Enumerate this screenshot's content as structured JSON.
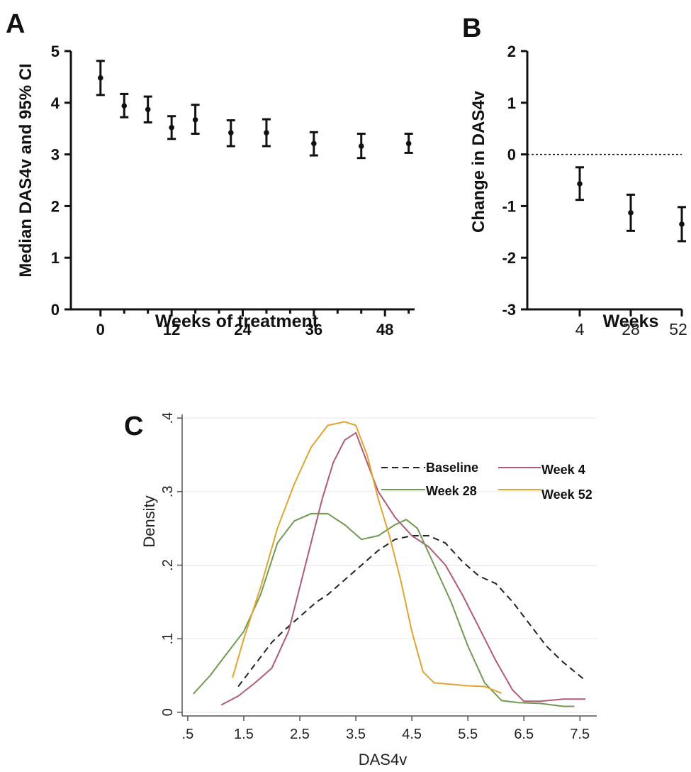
{
  "chart_data": [
    {
      "panel": "A",
      "type": "scatter",
      "xlabel": "Weeks of treatment",
      "ylabel": "Median DAS4v and 95% CI",
      "xticks": [
        0,
        12,
        24,
        36,
        48
      ],
      "yticks": [
        0,
        1,
        2,
        3,
        4,
        5
      ],
      "xlim": [
        -5,
        53
      ],
      "ylim": [
        0,
        5
      ],
      "points": [
        {
          "x": 0,
          "y": 4.48,
          "lo": 4.15,
          "hi": 4.81
        },
        {
          "x": 4,
          "y": 3.94,
          "lo": 3.72,
          "hi": 4.17
        },
        {
          "x": 8,
          "y": 3.87,
          "lo": 3.62,
          "hi": 4.12
        },
        {
          "x": 12,
          "y": 3.52,
          "lo": 3.3,
          "hi": 3.74
        },
        {
          "x": 16,
          "y": 3.67,
          "lo": 3.4,
          "hi": 3.96
        },
        {
          "x": 22,
          "y": 3.42,
          "lo": 3.16,
          "hi": 3.66
        },
        {
          "x": 28,
          "y": 3.42,
          "lo": 3.16,
          "hi": 3.68
        },
        {
          "x": 36,
          "y": 3.21,
          "lo": 2.98,
          "hi": 3.43
        },
        {
          "x": 44,
          "y": 3.16,
          "lo": 2.93,
          "hi": 3.4
        },
        {
          "x": 52,
          "y": 3.21,
          "lo": 3.03,
          "hi": 3.4
        }
      ]
    },
    {
      "panel": "B",
      "type": "scatter",
      "xlabel": "Weeks",
      "ylabel": "Change in DAS4v",
      "categories": [
        "4",
        "28",
        "52"
      ],
      "yticks": [
        -3,
        -2,
        -1,
        0,
        1,
        2
      ],
      "ylim": [
        -3,
        2
      ],
      "reference_line": 0,
      "points": [
        {
          "x": "4",
          "y": -0.57,
          "lo": -0.88,
          "hi": -0.25
        },
        {
          "x": "28",
          "y": -1.13,
          "lo": -1.48,
          "hi": -0.78
        },
        {
          "x": "52",
          "y": -1.35,
          "lo": -1.68,
          "hi": -1.02
        }
      ]
    },
    {
      "panel": "C",
      "type": "line",
      "xlabel": "DAS4v",
      "ylabel": "Density",
      "xticks": [
        ".5",
        "1.5",
        "2.5",
        "3.5",
        "4.5",
        "5.5",
        "6.5",
        "7.5"
      ],
      "yticks": [
        "0",
        ".1",
        ".2",
        ".3",
        ".4"
      ],
      "xlim": [
        0.4,
        7.8
      ],
      "ylim": [
        -0.005,
        0.405
      ],
      "grid": true,
      "legend": "top-right",
      "series": [
        {
          "name": "Baseline",
          "color": "#222222",
          "dash": true,
          "x": [
            1.4,
            1.6,
            1.8,
            2.0,
            2.2,
            2.5,
            2.8,
            3.0,
            3.3,
            3.6,
            3.9,
            4.2,
            4.5,
            4.8,
            5.1,
            5.4,
            5.7,
            6.0,
            6.3,
            6.6,
            6.9,
            7.2,
            7.6
          ],
          "y": [
            0.035,
            0.055,
            0.075,
            0.095,
            0.11,
            0.13,
            0.15,
            0.16,
            0.18,
            0.2,
            0.22,
            0.235,
            0.24,
            0.24,
            0.23,
            0.205,
            0.185,
            0.175,
            0.15,
            0.12,
            0.09,
            0.068,
            0.043
          ]
        },
        {
          "name": "Week 4",
          "color": "#b05a78",
          "dash": false,
          "x": [
            1.1,
            1.4,
            1.7,
            2.0,
            2.3,
            2.6,
            2.9,
            3.1,
            3.3,
            3.5,
            3.7,
            3.9,
            4.2,
            4.5,
            4.8,
            5.1,
            5.4,
            5.7,
            6.0,
            6.3,
            6.5,
            6.8,
            7.2,
            7.6
          ],
          "y": [
            0.01,
            0.022,
            0.04,
            0.06,
            0.11,
            0.2,
            0.29,
            0.34,
            0.37,
            0.38,
            0.34,
            0.3,
            0.265,
            0.24,
            0.225,
            0.2,
            0.16,
            0.115,
            0.07,
            0.03,
            0.015,
            0.015,
            0.018,
            0.018
          ]
        },
        {
          "name": "Week 28",
          "color": "#6f9a52",
          "dash": false,
          "x": [
            0.6,
            0.9,
            1.2,
            1.5,
            1.8,
            2.1,
            2.4,
            2.7,
            3.0,
            3.3,
            3.6,
            3.9,
            4.2,
            4.4,
            4.6,
            4.9,
            5.2,
            5.5,
            5.8,
            6.1,
            6.4,
            6.8,
            7.2,
            7.4
          ],
          "y": [
            0.025,
            0.05,
            0.08,
            0.11,
            0.16,
            0.23,
            0.26,
            0.27,
            0.27,
            0.255,
            0.235,
            0.24,
            0.255,
            0.262,
            0.25,
            0.2,
            0.15,
            0.09,
            0.04,
            0.016,
            0.013,
            0.012,
            0.008,
            0.008
          ]
        },
        {
          "name": "Week 52",
          "color": "#e2a431",
          "dash": false,
          "x": [
            1.3,
            1.5,
            1.8,
            2.1,
            2.4,
            2.7,
            3.0,
            3.3,
            3.5,
            3.7,
            3.9,
            4.1,
            4.3,
            4.5,
            4.7,
            4.9,
            5.2,
            5.5,
            5.8,
            6.1
          ],
          "y": [
            0.047,
            0.1,
            0.17,
            0.25,
            0.31,
            0.36,
            0.39,
            0.395,
            0.39,
            0.35,
            0.29,
            0.24,
            0.18,
            0.11,
            0.055,
            0.04,
            0.038,
            0.036,
            0.035,
            0.026
          ]
        }
      ]
    }
  ],
  "panel_labels": [
    "A",
    "B",
    "C"
  ]
}
